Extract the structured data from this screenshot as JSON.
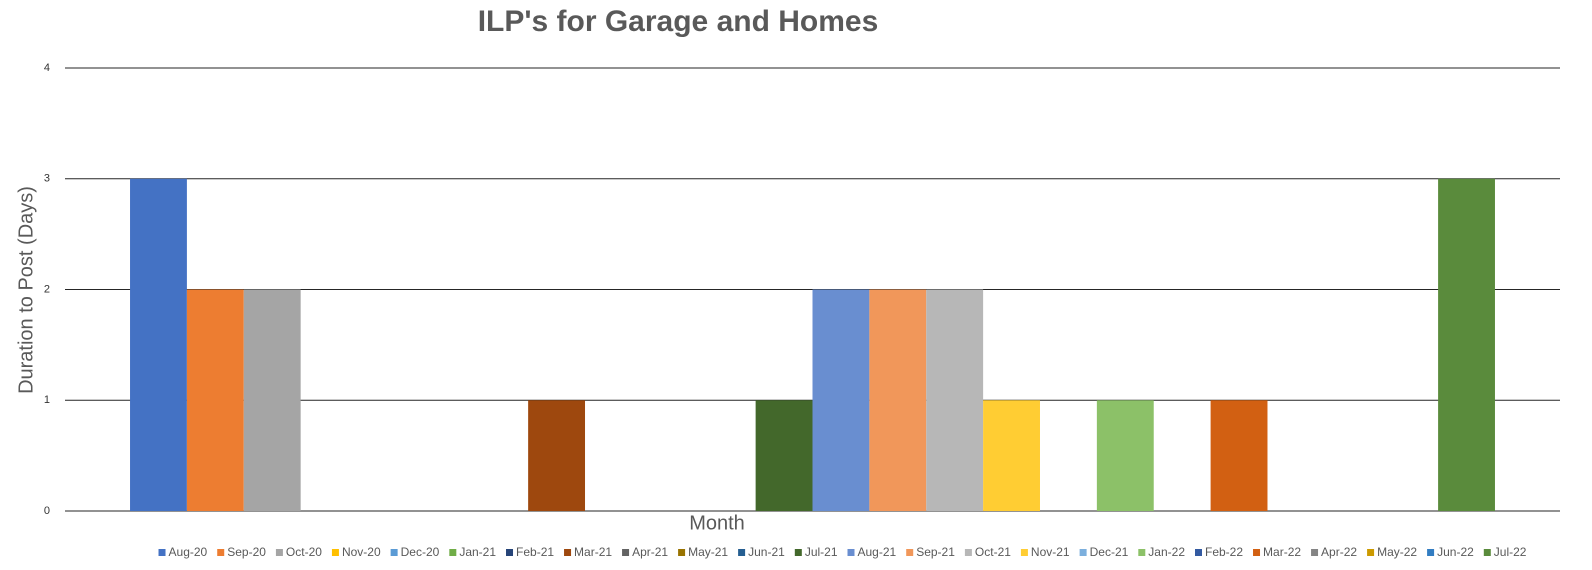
{
  "chart_data": {
    "type": "bar",
    "title": "ILP's for Garage and Homes",
    "x_label": "Month",
    "y_label": "Duration to Post (Days)",
    "categories": [
      null
    ],
    "series": [
      {
        "name": "Aug-20",
        "color": "#4472c4",
        "values": [
          3
        ]
      },
      {
        "name": "Sep-20",
        "color": "#ed7d31",
        "values": [
          2
        ]
      },
      {
        "name": "Oct-20",
        "color": "#a5a5a5",
        "values": [
          2
        ]
      },
      {
        "name": "Nov-20",
        "color": "#ffc000",
        "values": [
          0
        ]
      },
      {
        "name": "Dec-20",
        "color": "#5b9bd5",
        "values": [
          0
        ]
      },
      {
        "name": "Jan-21",
        "color": "#70ad47",
        "values": [
          0
        ]
      },
      {
        "name": "Feb-21",
        "color": "#264478",
        "values": [
          0
        ]
      },
      {
        "name": "Mar-21",
        "color": "#9e480e",
        "values": [
          1
        ]
      },
      {
        "name": "Apr-21",
        "color": "#636363",
        "values": [
          0
        ]
      },
      {
        "name": "May-21",
        "color": "#997300",
        "values": [
          0
        ]
      },
      {
        "name": "Jun-21",
        "color": "#255e91",
        "values": [
          0
        ]
      },
      {
        "name": "Jul-21",
        "color": "#43682b",
        "values": [
          1
        ]
      },
      {
        "name": "Aug-21",
        "color": "#698ed0",
        "values": [
          2
        ]
      },
      {
        "name": "Sep-21",
        "color": "#f1975a",
        "values": [
          2
        ]
      },
      {
        "name": "Oct-21",
        "color": "#b7b7b7",
        "values": [
          2
        ]
      },
      {
        "name": "Nov-21",
        "color": "#ffcd33",
        "values": [
          1
        ]
      },
      {
        "name": "Dec-21",
        "color": "#7cafdd",
        "values": [
          0
        ]
      },
      {
        "name": "Jan-22",
        "color": "#8cc168",
        "values": [
          1
        ]
      },
      {
        "name": "Feb-22",
        "color": "#335aa1",
        "values": [
          0
        ]
      },
      {
        "name": "Mar-22",
        "color": "#d26012",
        "values": [
          1
        ]
      },
      {
        "name": "Apr-22",
        "color": "#848484",
        "values": [
          0
        ]
      },
      {
        "name": "May-22",
        "color": "#cc9a00",
        "values": [
          0
        ]
      },
      {
        "name": "Jun-22",
        "color": "#327dc2",
        "values": [
          0
        ]
      },
      {
        "name": "Jul-22",
        "color": "#5a8b3c",
        "values": [
          3
        ]
      }
    ],
    "ylim": [
      0,
      4
    ],
    "yticks": [
      0,
      1,
      2,
      3,
      4
    ],
    "grid": true,
    "legend": "bottom"
  }
}
